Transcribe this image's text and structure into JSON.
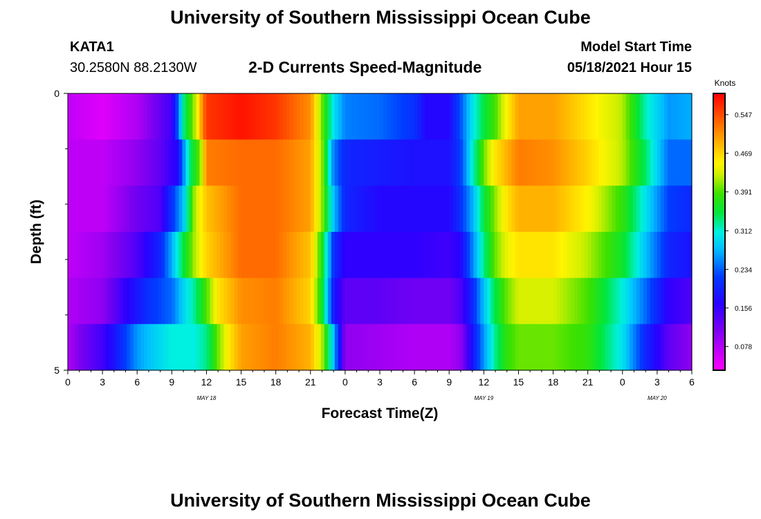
{
  "header": {
    "title": "University of Southern Mississippi Ocean Cube",
    "station": "KATA1",
    "coords": "30.2580N  88.2130W",
    "subtitle": "2-D Currents Speed-Magnitude",
    "start_label": "Model Start Time",
    "start_value": "05/18/2021 Hour 15"
  },
  "footer": {
    "title": "University of Southern Mississippi Ocean Cube"
  },
  "chart_data": {
    "type": "heatmap",
    "title": "2-D Currents Speed-Magnitude",
    "xlabel": "Forecast Time(Z)",
    "ylabel": "Depth (ft)",
    "x_range_hours": [
      0,
      54
    ],
    "y_range": [
      0,
      5
    ],
    "x_ticks": [
      {
        "h": 0,
        "label": "0"
      },
      {
        "h": 3,
        "label": "3"
      },
      {
        "h": 6,
        "label": "6"
      },
      {
        "h": 9,
        "label": "9"
      },
      {
        "h": 12,
        "label": "12"
      },
      {
        "h": 15,
        "label": "15"
      },
      {
        "h": 18,
        "label": "18"
      },
      {
        "h": 21,
        "label": "21"
      },
      {
        "h": 24,
        "label": "0"
      },
      {
        "h": 27,
        "label": "3"
      },
      {
        "h": 30,
        "label": "6"
      },
      {
        "h": 33,
        "label": "9"
      },
      {
        "h": 36,
        "label": "12"
      },
      {
        "h": 39,
        "label": "15"
      },
      {
        "h": 42,
        "label": "18"
      },
      {
        "h": 45,
        "label": "21"
      },
      {
        "h": 48,
        "label": "0"
      },
      {
        "h": 51,
        "label": "3"
      },
      {
        "h": 54,
        "label": "6"
      }
    ],
    "y_ticks": [
      {
        "v": 0,
        "label": "0"
      },
      {
        "v": 5,
        "label": "5"
      }
    ],
    "date_labels": [
      {
        "h": 12,
        "label": "MAY 18"
      },
      {
        "h": 36,
        "label": "MAY 19"
      },
      {
        "h": 51,
        "label": "MAY 20"
      }
    ],
    "colorbar": {
      "unit": "Knots",
      "min": 0.03,
      "max": 0.59,
      "ticks": [
        "0.078",
        "0.156",
        "0.234",
        "0.312",
        "0.391",
        "0.469",
        "0.547"
      ]
    },
    "depth_layers": [
      0,
      1,
      2,
      3,
      4,
      5
    ],
    "series": [
      {
        "name": "layer-0-1ft",
        "key_hours": [
          0,
          3,
          6,
          9,
          9.5,
          10,
          11,
          12,
          15,
          18,
          21,
          22,
          23,
          24,
          27,
          30,
          31,
          33,
          34,
          35,
          36,
          37,
          38,
          39,
          42,
          45,
          48,
          50,
          52,
          54
        ],
        "values": [
          0.07,
          0.05,
          0.08,
          0.15,
          0.23,
          0.33,
          0.42,
          0.56,
          0.58,
          0.56,
          0.51,
          0.4,
          0.3,
          0.25,
          0.24,
          0.21,
          0.17,
          0.17,
          0.23,
          0.3,
          0.35,
          0.39,
          0.45,
          0.5,
          0.5,
          0.46,
          0.42,
          0.32,
          0.26,
          0.27
        ]
      },
      {
        "name": "layer-1-2ft",
        "key_hours": [
          0,
          3,
          6,
          8,
          9.5,
          10.5,
          11.5,
          12,
          15,
          18,
          21,
          22,
          23,
          24,
          27,
          30,
          33,
          34,
          35,
          36,
          37,
          38,
          39,
          42,
          45,
          48,
          50,
          52,
          54
        ],
        "values": [
          0.07,
          0.07,
          0.1,
          0.13,
          0.17,
          0.33,
          0.41,
          0.52,
          0.53,
          0.53,
          0.5,
          0.41,
          0.25,
          0.2,
          0.19,
          0.18,
          0.18,
          0.22,
          0.31,
          0.4,
          0.46,
          0.49,
          0.52,
          0.51,
          0.47,
          0.42,
          0.34,
          0.24,
          0.24
        ]
      },
      {
        "name": "layer-2-3ft",
        "key_hours": [
          0,
          3,
          6,
          8,
          10,
          11,
          12,
          15,
          18,
          21,
          22,
          23,
          24,
          27,
          30,
          33,
          34,
          35,
          36,
          37,
          38,
          39,
          42,
          45,
          48,
          50,
          52,
          54
        ],
        "values": [
          0.07,
          0.07,
          0.12,
          0.14,
          0.28,
          0.42,
          0.48,
          0.53,
          0.53,
          0.5,
          0.41,
          0.28,
          0.2,
          0.17,
          0.17,
          0.17,
          0.21,
          0.27,
          0.35,
          0.41,
          0.46,
          0.49,
          0.49,
          0.45,
          0.38,
          0.3,
          0.22,
          0.2
        ]
      },
      {
        "name": "layer-3-4ft",
        "key_hours": [
          0,
          3,
          6,
          8,
          9,
          10,
          11,
          12,
          15,
          18,
          21,
          22,
          23,
          24,
          27,
          30,
          33,
          34,
          35,
          36,
          37,
          38,
          39,
          42,
          45,
          48,
          50,
          52,
          54
        ],
        "values": [
          0.07,
          0.09,
          0.14,
          0.2,
          0.27,
          0.35,
          0.42,
          0.47,
          0.53,
          0.53,
          0.48,
          0.37,
          0.21,
          0.16,
          0.16,
          0.16,
          0.15,
          0.17,
          0.25,
          0.33,
          0.4,
          0.44,
          0.46,
          0.46,
          0.42,
          0.36,
          0.28,
          0.2,
          0.18
        ]
      },
      {
        "name": "layer-4-5ft",
        "key_hours": [
          0,
          3,
          5,
          7,
          9,
          10,
          11,
          12,
          13,
          15,
          18,
          21,
          22,
          23,
          24,
          27,
          30,
          33,
          34,
          35,
          36,
          37,
          38,
          39,
          42,
          45,
          48,
          50,
          52,
          54
        ],
        "values": [
          0.08,
          0.1,
          0.16,
          0.21,
          0.24,
          0.29,
          0.33,
          0.39,
          0.46,
          0.51,
          0.52,
          0.47,
          0.36,
          0.19,
          0.13,
          0.13,
          0.12,
          0.12,
          0.14,
          0.2,
          0.28,
          0.35,
          0.4,
          0.43,
          0.43,
          0.39,
          0.31,
          0.24,
          0.16,
          0.14
        ]
      },
      {
        "name": "layer-5-6ft",
        "key_hours": [
          0,
          1,
          3,
          4,
          5,
          6,
          7,
          9,
          11,
          12,
          13,
          14,
          15,
          18,
          21,
          22,
          23,
          24,
          27,
          30,
          33,
          34,
          35,
          36,
          37,
          38,
          39,
          42,
          45,
          48,
          50,
          52,
          54
        ],
        "values": [
          0.08,
          0.11,
          0.15,
          0.18,
          0.22,
          0.26,
          0.28,
          0.31,
          0.31,
          0.33,
          0.4,
          0.46,
          0.5,
          0.52,
          0.49,
          0.42,
          0.28,
          0.1,
          0.09,
          0.08,
          0.08,
          0.1,
          0.18,
          0.26,
          0.33,
          0.38,
          0.4,
          0.4,
          0.38,
          0.3,
          0.2,
          0.13,
          0.1
        ]
      }
    ]
  }
}
